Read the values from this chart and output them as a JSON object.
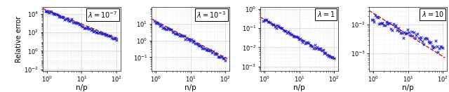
{
  "panels": [
    {
      "lambda_label": "\\lambda = 10^{-7}",
      "ylim": [
        0.007,
        50000
      ],
      "yticks": [
        0.01,
        1,
        100,
        10000
      ],
      "ytick_labels": [
        "10^{-2}",
        "10^{0}",
        "10^{2}",
        "10^{4}"
      ],
      "show_ylabel": true,
      "slope_blue": -1.5,
      "slope_red": -1.5,
      "intercept_blue": 18000,
      "intercept_red": 25000,
      "noise_sigma": 0.18
    },
    {
      "lambda_label": "\\lambda = 10^{-3}",
      "ylim": [
        0.015,
        100
      ],
      "yticks": [
        0.1,
        1,
        10
      ],
      "ytick_labels": [
        "10^{-1}",
        "10^{0}",
        "10^{1}"
      ],
      "show_ylabel": false,
      "slope_blue": -1.1,
      "slope_red": -1.1,
      "intercept_blue": 12,
      "intercept_red": 15,
      "noise_sigma": 0.12
    },
    {
      "lambda_label": "\\lambda = 1",
      "ylim": [
        0.0006,
        1.2
      ],
      "yticks": [
        0.001,
        0.01,
        0.1,
        1.0
      ],
      "ytick_labels": [
        "10^{-3}",
        "10^{-2}",
        "10^{-1}",
        "10^{0}"
      ],
      "show_ylabel": false,
      "slope_blue": -1.0,
      "slope_red": -1.0,
      "intercept_blue": 0.28,
      "intercept_red": 0.28,
      "noise_sigma": 0.12
    },
    {
      "lambda_label": "\\lambda = 10",
      "ylim": [
        0.00025,
        0.04
      ],
      "yticks": [
        0.001,
        0.01
      ],
      "ytick_labels": [
        "10^{-3}",
        "10^{-2}"
      ],
      "show_ylabel": false,
      "slope_blue": -0.5,
      "slope_red": -0.75,
      "intercept_blue": 0.016,
      "intercept_red": 0.025,
      "noise_sigma": 0.2
    }
  ],
  "marker_color": "#1414cc",
  "line_color": "#cc1414",
  "xlabel": "n/p",
  "figsize": [
    6.4,
    1.31
  ],
  "dpi": 100
}
